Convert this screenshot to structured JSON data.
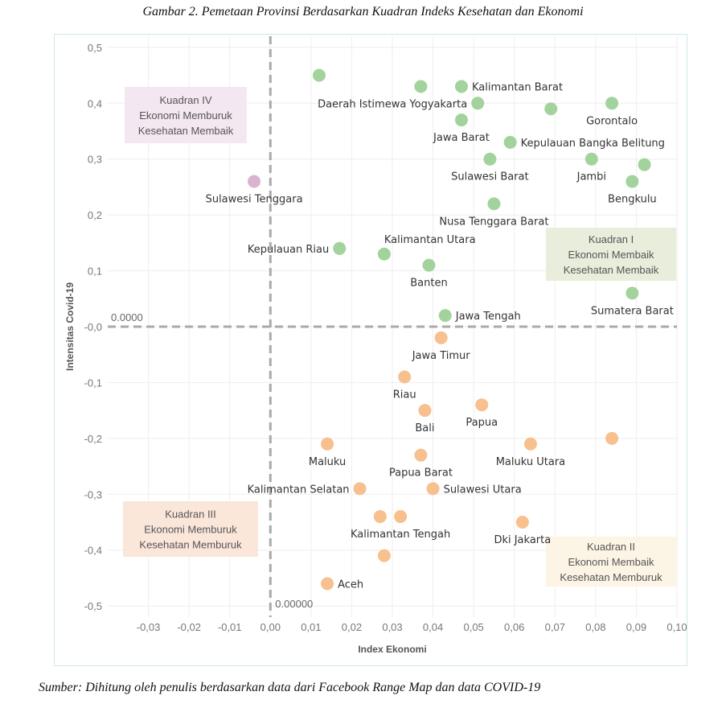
{
  "figure": {
    "title": "Gambar 2. Pemetaan Provinsi Berdasarkan Kuadran Indeks Kesehatan dan Ekonomi",
    "source": "Sumber: Dihitung oleh penulis berdasarkan data dari Facebook Range Map dan data COVID-19"
  },
  "chart_data": {
    "type": "scatter",
    "title": "Gambar 2. Pemetaan Provinsi Berdasarkan Kuadran Indeks Kesehatan dan Ekonomi",
    "xlabel": "Index Ekonomi",
    "ylabel": "Intensitas Covid-19",
    "xlim": [
      -0.04,
      0.1
    ],
    "ylim": [
      -0.52,
      0.52
    ],
    "x_ticks": [
      "-0,03",
      "-0,02",
      "-0,01",
      "0,00",
      "0,01",
      "0,02",
      "0,03",
      "0,04",
      "0,05",
      "0,06",
      "0,07",
      "0,08",
      "0,09",
      "0,10"
    ],
    "x_tick_values": [
      -0.03,
      -0.02,
      -0.01,
      0.0,
      0.01,
      0.02,
      0.03,
      0.04,
      0.05,
      0.06,
      0.07,
      0.08,
      0.09,
      0.1
    ],
    "y_ticks": [
      "0,5",
      "0,4",
      "0,3",
      "0,2",
      "0,1",
      "-0,0",
      "-0,1",
      "-0,2",
      "-0,3",
      "-0,4",
      "-0,5"
    ],
    "y_tick_values": [
      0.5,
      0.4,
      0.3,
      0.2,
      0.1,
      0.0,
      -0.1,
      -0.2,
      -0.3,
      -0.4,
      -0.5
    ],
    "grid": true,
    "reference_lines": {
      "horizontal": {
        "value": 0.0,
        "label": "0.0000"
      },
      "vertical": {
        "value": 0.0,
        "label": "0.00000"
      }
    },
    "colors": {
      "quadrant_I": "#a3d39c",
      "quadrant_II": "#f7c08e",
      "quadrant_III": "#f7c08e",
      "quadrant_IV": "#d9b4d0",
      "grid": "#eeeeee",
      "ref_line": "#aaaaaa"
    },
    "quadrant_boxes": [
      {
        "name": "Kuadran I",
        "lines": [
          "Kuadran I",
          "Ekonomi Membaik",
          "Kesehatan Membaik"
        ],
        "position": "right-upper",
        "color": "#e8eedb"
      },
      {
        "name": "Kuadran II",
        "lines": [
          "Kuadran II",
          "Ekonomi Membaik",
          "Kesehatan Memburuk"
        ],
        "position": "bottom-right",
        "color": "#fcf4e4"
      },
      {
        "name": "Kuadran III",
        "lines": [
          "Kuadran III",
          "Ekonomi Memburuk",
          "Kesehatan Memburuk"
        ],
        "position": "bottom-left",
        "color": "#fbe6da"
      },
      {
        "name": "Kuadran IV",
        "lines": [
          "Kuadran IV",
          "Ekonomi Memburuk",
          "Kesehatan Membaik"
        ],
        "position": "top-left",
        "color": "#f3e7f1"
      }
    ],
    "points": [
      {
        "label": "",
        "x": 0.012,
        "y": 0.45,
        "q": "I"
      },
      {
        "label": "",
        "x": 0.037,
        "y": 0.43,
        "q": "I"
      },
      {
        "label": "Kalimantan Barat",
        "x": 0.047,
        "y": 0.43,
        "q": "I",
        "anchor": "right"
      },
      {
        "label": "Daerah Istimewa Yogyakarta",
        "x": 0.051,
        "y": 0.4,
        "q": "I",
        "anchor": "left"
      },
      {
        "label": "",
        "x": 0.069,
        "y": 0.39,
        "q": "I"
      },
      {
        "label": "Gorontalo",
        "x": 0.084,
        "y": 0.4,
        "q": "I",
        "anchor": "below"
      },
      {
        "label": "Jawa Barat",
        "x": 0.047,
        "y": 0.37,
        "q": "I",
        "anchor": "below"
      },
      {
        "label": "Kepulauan Bangka Belitung",
        "x": 0.059,
        "y": 0.33,
        "q": "I",
        "anchor": "right"
      },
      {
        "label": "Sulawesi Barat",
        "x": 0.054,
        "y": 0.3,
        "q": "I",
        "anchor": "below"
      },
      {
        "label": "Jambi",
        "x": 0.079,
        "y": 0.3,
        "q": "I",
        "anchor": "below"
      },
      {
        "label": "Bengkulu",
        "x": 0.089,
        "y": 0.26,
        "q": "I",
        "anchor": "below"
      },
      {
        "label": "",
        "x": 0.092,
        "y": 0.29,
        "q": "I"
      },
      {
        "label": "Nusa Tenggara Barat",
        "x": 0.055,
        "y": 0.22,
        "q": "I",
        "anchor": "below"
      },
      {
        "label": "Kepulauan Riau",
        "x": 0.017,
        "y": 0.14,
        "q": "I",
        "anchor": "left"
      },
      {
        "label": "Kalimantan Utara",
        "x": 0.028,
        "y": 0.13,
        "q": "I",
        "anchor": "above-right"
      },
      {
        "label": "Banten",
        "x": 0.039,
        "y": 0.11,
        "q": "I",
        "anchor": "below"
      },
      {
        "label": "Sumatera Barat",
        "x": 0.089,
        "y": 0.06,
        "q": "I",
        "anchor": "below"
      },
      {
        "label": "Jawa Tengah",
        "x": 0.043,
        "y": 0.02,
        "q": "I",
        "anchor": "right"
      },
      {
        "label": "Sulawesi Tenggara",
        "x": -0.004,
        "y": 0.26,
        "q": "IV",
        "anchor": "below"
      },
      {
        "label": "Jawa Timur",
        "x": 0.042,
        "y": -0.02,
        "q": "II",
        "anchor": "below"
      },
      {
        "label": "Riau",
        "x": 0.033,
        "y": -0.09,
        "q": "II",
        "anchor": "below"
      },
      {
        "label": "Bali",
        "x": 0.038,
        "y": -0.15,
        "q": "II",
        "anchor": "below"
      },
      {
        "label": "Papua",
        "x": 0.052,
        "y": -0.14,
        "q": "II",
        "anchor": "below"
      },
      {
        "label": "",
        "x": 0.084,
        "y": -0.2,
        "q": "II"
      },
      {
        "label": "Maluku Utara",
        "x": 0.064,
        "y": -0.21,
        "q": "II",
        "anchor": "below"
      },
      {
        "label": "Papua Barat",
        "x": 0.037,
        "y": -0.23,
        "q": "II",
        "anchor": "below"
      },
      {
        "label": "Maluku",
        "x": 0.014,
        "y": -0.21,
        "q": "II",
        "anchor": "below"
      },
      {
        "label": "Kalimantan Selatan",
        "x": 0.022,
        "y": -0.29,
        "q": "II",
        "anchor": "left"
      },
      {
        "label": "Sulawesi Utara",
        "x": 0.04,
        "y": -0.29,
        "q": "II",
        "anchor": "right"
      },
      {
        "label": "",
        "x": 0.027,
        "y": -0.34,
        "q": "II"
      },
      {
        "label": "Kalimantan Tengah",
        "x": 0.032,
        "y": -0.34,
        "q": "II",
        "anchor": "below"
      },
      {
        "label": "Dki Jakarta",
        "x": 0.062,
        "y": -0.35,
        "q": "II",
        "anchor": "below"
      },
      {
        "label": "",
        "x": 0.028,
        "y": -0.41,
        "q": "II"
      },
      {
        "label": "Aceh",
        "x": 0.014,
        "y": -0.46,
        "q": "II",
        "anchor": "right"
      }
    ]
  }
}
